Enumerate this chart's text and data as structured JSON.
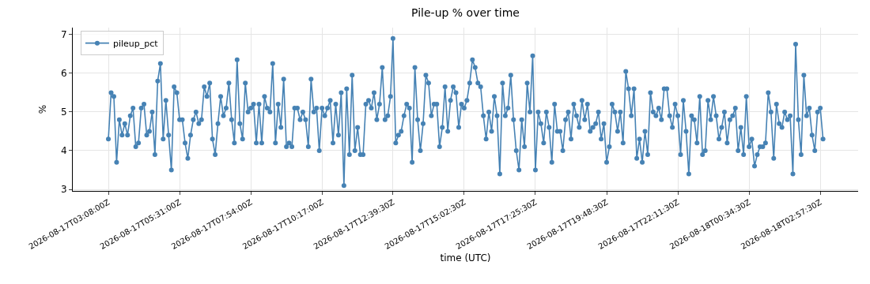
{
  "chart_data": {
    "type": "line",
    "title": "Pile-up % over time",
    "xlabel": "time (UTC)",
    "ylabel": "%",
    "x": [
      "2026-08-17T03:08:00",
      "2026-08-17T03:13:30",
      "2026-08-17T03:19:00",
      "2026-08-17T03:24:30",
      "2026-08-17T03:30:00",
      "2026-08-17T03:35:30",
      "2026-08-17T03:41:00",
      "2026-08-17T03:46:30",
      "2026-08-17T03:52:00",
      "2026-08-17T03:57:30",
      "2026-08-17T04:03:00",
      "2026-08-17T04:08:30",
      "2026-08-17T04:14:00",
      "2026-08-17T04:19:30",
      "2026-08-17T04:25:00",
      "2026-08-17T04:30:30",
      "2026-08-17T04:36:00",
      "2026-08-17T04:41:30",
      "2026-08-17T04:47:00",
      "2026-08-17T04:52:30",
      "2026-08-17T04:58:00",
      "2026-08-17T05:03:30",
      "2026-08-17T05:09:00",
      "2026-08-17T05:14:30",
      "2026-08-17T05:20:00",
      "2026-08-17T05:25:30",
      "2026-08-17T05:31:00",
      "2026-08-17T05:36:30",
      "2026-08-17T05:42:00",
      "2026-08-17T05:47:30",
      "2026-08-17T05:53:00",
      "2026-08-17T05:58:30",
      "2026-08-17T06:04:00",
      "2026-08-17T06:09:30",
      "2026-08-17T06:15:00",
      "2026-08-17T06:20:30",
      "2026-08-17T06:26:00",
      "2026-08-17T06:31:30",
      "2026-08-17T06:37:00",
      "2026-08-17T06:42:30",
      "2026-08-17T06:48:00",
      "2026-08-17T06:53:30",
      "2026-08-17T06:59:00",
      "2026-08-17T07:04:30",
      "2026-08-17T07:10:00",
      "2026-08-17T07:15:30",
      "2026-08-17T07:21:00",
      "2026-08-17T07:26:30",
      "2026-08-17T07:32:00",
      "2026-08-17T07:37:30",
      "2026-08-17T07:43:00",
      "2026-08-17T07:48:30",
      "2026-08-17T07:54:00",
      "2026-08-17T07:59:30",
      "2026-08-17T08:05:00",
      "2026-08-17T08:10:30",
      "2026-08-17T08:16:00",
      "2026-08-17T08:21:30",
      "2026-08-17T08:27:00",
      "2026-08-17T08:32:30",
      "2026-08-17T08:38:00",
      "2026-08-17T08:43:30",
      "2026-08-17T08:49:00",
      "2026-08-17T08:54:30",
      "2026-08-17T09:00:00",
      "2026-08-17T09:05:30",
      "2026-08-17T09:11:00",
      "2026-08-17T09:16:30",
      "2026-08-17T09:22:00",
      "2026-08-17T09:27:30",
      "2026-08-17T09:33:00",
      "2026-08-17T09:38:30",
      "2026-08-17T09:44:00",
      "2026-08-17T09:49:30",
      "2026-08-17T09:55:00",
      "2026-08-17T10:00:30",
      "2026-08-17T10:06:00",
      "2026-08-17T10:11:30",
      "2026-08-17T10:17:00",
      "2026-08-17T10:22:30",
      "2026-08-17T10:28:00",
      "2026-08-17T10:33:30",
      "2026-08-17T10:39:00",
      "2026-08-17T10:44:30",
      "2026-08-17T10:50:00",
      "2026-08-17T10:55:30",
      "2026-08-17T11:01:00",
      "2026-08-17T11:06:30",
      "2026-08-17T11:12:00",
      "2026-08-17T11:17:30",
      "2026-08-17T11:23:00",
      "2026-08-17T11:28:30",
      "2026-08-17T11:34:00",
      "2026-08-17T11:39:30",
      "2026-08-17T11:45:00",
      "2026-08-17T11:50:30",
      "2026-08-17T11:56:00",
      "2026-08-17T12:01:30",
      "2026-08-17T12:07:00",
      "2026-08-17T12:12:30",
      "2026-08-17T12:18:00",
      "2026-08-17T12:23:30",
      "2026-08-17T12:29:00",
      "2026-08-17T12:34:30",
      "2026-08-17T12:39:30",
      "2026-08-17T12:45:00",
      "2026-08-17T12:50:30",
      "2026-08-17T12:56:00",
      "2026-08-17T13:01:30",
      "2026-08-17T13:07:00",
      "2026-08-17T13:12:30",
      "2026-08-17T13:18:00",
      "2026-08-17T13:23:30",
      "2026-08-17T13:29:00",
      "2026-08-17T13:34:30",
      "2026-08-17T13:40:00",
      "2026-08-17T13:45:30",
      "2026-08-17T13:51:00",
      "2026-08-17T13:56:30",
      "2026-08-17T14:02:00",
      "2026-08-17T14:07:30",
      "2026-08-17T14:13:00",
      "2026-08-17T14:18:30",
      "2026-08-17T14:24:00",
      "2026-08-17T14:29:30",
      "2026-08-17T14:35:00",
      "2026-08-17T14:40:30",
      "2026-08-17T14:46:00",
      "2026-08-17T14:51:30",
      "2026-08-17T14:57:00",
      "2026-08-17T15:02:30",
      "2026-08-17T15:08:00",
      "2026-08-17T15:13:30",
      "2026-08-17T15:19:00",
      "2026-08-17T15:24:30",
      "2026-08-17T15:30:00",
      "2026-08-17T15:35:30",
      "2026-08-17T15:41:00",
      "2026-08-17T15:46:30",
      "2026-08-17T15:52:00",
      "2026-08-17T15:57:30",
      "2026-08-17T16:03:00",
      "2026-08-17T16:08:30",
      "2026-08-17T16:14:00",
      "2026-08-17T16:19:30",
      "2026-08-17T16:25:00",
      "2026-08-17T16:30:30",
      "2026-08-17T16:36:00",
      "2026-08-17T16:41:30",
      "2026-08-17T16:47:00",
      "2026-08-17T16:52:30",
      "2026-08-17T16:58:00",
      "2026-08-17T17:03:30",
      "2026-08-17T17:09:00",
      "2026-08-17T17:14:30",
      "2026-08-17T17:20:00",
      "2026-08-17T17:25:30",
      "2026-08-17T17:31:00",
      "2026-08-17T17:36:30",
      "2026-08-17T17:42:00",
      "2026-08-17T17:47:30",
      "2026-08-17T17:53:00",
      "2026-08-17T17:58:30",
      "2026-08-17T18:04:00",
      "2026-08-17T18:09:30",
      "2026-08-17T18:15:00",
      "2026-08-17T18:20:30",
      "2026-08-17T18:26:00",
      "2026-08-17T18:31:30",
      "2026-08-17T18:37:00",
      "2026-08-17T18:42:30",
      "2026-08-17T18:48:00",
      "2026-08-17T18:53:30",
      "2026-08-17T18:59:00",
      "2026-08-17T19:04:30",
      "2026-08-17T19:10:00",
      "2026-08-17T19:15:30",
      "2026-08-17T19:21:00",
      "2026-08-17T19:26:30",
      "2026-08-17T19:32:00",
      "2026-08-17T19:37:30",
      "2026-08-17T19:43:00",
      "2026-08-17T19:48:30",
      "2026-08-17T19:54:00",
      "2026-08-17T19:59:30",
      "2026-08-17T20:05:00",
      "2026-08-17T20:10:30",
      "2026-08-17T20:16:00",
      "2026-08-17T20:21:30",
      "2026-08-17T20:27:00",
      "2026-08-17T20:32:30",
      "2026-08-17T20:38:00",
      "2026-08-17T20:43:30",
      "2026-08-17T20:49:00",
      "2026-08-17T20:54:30",
      "2026-08-17T21:00:00",
      "2026-08-17T21:05:30",
      "2026-08-17T21:11:00",
      "2026-08-17T21:16:30",
      "2026-08-17T21:22:00",
      "2026-08-17T21:27:30",
      "2026-08-17T21:33:00",
      "2026-08-17T21:38:30",
      "2026-08-17T21:44:00",
      "2026-08-17T21:49:30",
      "2026-08-17T21:55:00",
      "2026-08-17T22:00:30",
      "2026-08-17T22:06:00",
      "2026-08-17T22:11:30",
      "2026-08-17T22:17:00",
      "2026-08-17T22:22:30",
      "2026-08-17T22:28:00",
      "2026-08-17T22:33:30",
      "2026-08-17T22:39:00",
      "2026-08-17T22:44:30",
      "2026-08-17T22:50:00",
      "2026-08-17T22:55:30",
      "2026-08-17T23:01:00",
      "2026-08-17T23:06:30",
      "2026-08-17T23:12:00",
      "2026-08-17T23:17:30",
      "2026-08-17T23:23:00",
      "2026-08-17T23:28:30",
      "2026-08-17T23:34:00",
      "2026-08-17T23:39:30",
      "2026-08-17T23:45:00",
      "2026-08-17T23:50:30",
      "2026-08-17T23:56:00",
      "2026-08-18T00:01:30",
      "2026-08-18T00:07:00",
      "2026-08-18T00:12:30",
      "2026-08-18T00:18:00",
      "2026-08-18T00:23:30",
      "2026-08-18T00:29:00",
      "2026-08-18T00:34:30",
      "2026-08-18T00:40:00",
      "2026-08-18T00:45:30",
      "2026-08-18T00:51:00",
      "2026-08-18T00:56:30",
      "2026-08-18T01:02:00",
      "2026-08-18T01:07:30",
      "2026-08-18T01:13:00",
      "2026-08-18T01:18:30",
      "2026-08-18T01:24:00",
      "2026-08-18T01:29:30",
      "2026-08-18T01:35:00",
      "2026-08-18T01:40:30",
      "2026-08-18T01:46:00",
      "2026-08-18T01:51:30",
      "2026-08-18T01:57:00",
      "2026-08-18T02:02:30",
      "2026-08-18T02:08:00",
      "2026-08-18T02:13:30",
      "2026-08-18T02:19:00",
      "2026-08-18T02:24:30",
      "2026-08-18T02:30:00",
      "2026-08-18T02:35:30",
      "2026-08-18T02:41:00",
      "2026-08-18T02:46:30",
      "2026-08-18T02:52:00",
      "2026-08-18T02:57:30",
      "2026-08-18T03:03:00"
    ],
    "series": [
      {
        "name": "pileup_pct",
        "color": "#4682b4",
        "values": [
          4.3,
          5.5,
          5.4,
          3.7,
          4.8,
          4.4,
          4.7,
          4.4,
          4.9,
          5.1,
          4.1,
          4.2,
          5.1,
          5.2,
          4.4,
          4.5,
          5.0,
          3.9,
          5.8,
          6.25,
          4.3,
          5.3,
          4.4,
          3.5,
          5.65,
          5.5,
          4.8,
          4.8,
          4.2,
          3.8,
          4.4,
          4.8,
          5.0,
          4.7,
          4.8,
          5.65,
          5.4,
          5.75,
          4.3,
          3.9,
          4.7,
          5.4,
          4.9,
          5.1,
          5.75,
          4.8,
          4.2,
          6.35,
          4.7,
          4.3,
          5.75,
          5.0,
          5.1,
          5.2,
          4.2,
          5.2,
          4.2,
          5.4,
          5.1,
          5.0,
          6.25,
          4.2,
          5.2,
          4.6,
          5.85,
          4.1,
          4.2,
          4.1,
          5.1,
          5.1,
          4.8,
          5.0,
          4.8,
          4.1,
          5.85,
          5.0,
          5.1,
          4.0,
          5.1,
          4.9,
          5.1,
          5.3,
          4.2,
          5.2,
          4.4,
          5.5,
          3.1,
          5.6,
          3.9,
          5.95,
          4.0,
          4.6,
          3.9,
          3.9,
          5.2,
          5.3,
          5.1,
          5.5,
          4.8,
          5.2,
          6.15,
          4.8,
          4.9,
          5.4,
          6.9,
          4.2,
          4.4,
          4.5,
          4.9,
          5.2,
          5.1,
          3.7,
          6.15,
          4.8,
          4.0,
          4.7,
          5.95,
          5.75,
          4.9,
          5.2,
          5.2,
          4.1,
          4.6,
          5.65,
          4.5,
          5.3,
          5.65,
          5.5,
          4.6,
          5.2,
          5.1,
          5.3,
          5.75,
          6.35,
          6.15,
          5.75,
          5.65,
          4.9,
          4.3,
          5.0,
          4.5,
          5.4,
          4.9,
          3.4,
          5.75,
          4.9,
          5.1,
          5.95,
          4.8,
          4.0,
          3.5,
          4.8,
          4.1,
          5.75,
          5.0,
          6.45,
          3.5,
          5.0,
          4.7,
          4.2,
          5.0,
          4.6,
          3.7,
          5.2,
          4.5,
          4.5,
          4.0,
          4.8,
          5.0,
          4.3,
          5.2,
          4.9,
          4.6,
          5.3,
          4.8,
          5.2,
          4.5,
          4.6,
          4.7,
          5.0,
          4.3,
          4.7,
          3.7,
          4.1,
          5.2,
          5.0,
          4.5,
          5.0,
          4.2,
          6.05,
          5.6,
          4.9,
          5.6,
          3.8,
          4.3,
          3.7,
          4.5,
          3.9,
          5.5,
          5.0,
          4.9,
          5.1,
          4.8,
          5.6,
          5.6,
          4.9,
          4.6,
          5.2,
          4.9,
          3.9,
          5.3,
          4.5,
          3.4,
          4.9,
          4.8,
          4.2,
          5.4,
          3.9,
          4.0,
          5.3,
          4.8,
          5.4,
          4.9,
          4.3,
          4.6,
          5.0,
          4.2,
          4.8,
          4.9,
          5.1,
          4.0,
          4.6,
          3.9,
          5.4,
          4.1,
          4.3,
          3.6,
          3.9,
          4.1,
          4.1,
          4.2,
          5.5,
          5.0,
          3.8,
          5.2,
          4.7,
          4.6,
          5.0,
          4.8,
          4.9,
          3.4,
          6.75,
          4.8,
          3.9,
          5.95,
          4.9,
          5.1,
          4.4,
          4.0,
          5.0,
          5.1,
          4.3
        ]
      }
    ],
    "xlim": [
      "2026-08-17T01:56:30",
      "2026-08-18T04:13:30"
    ],
    "xticks": [
      {
        "value": "2026-08-17T03:08:00",
        "label": "2026-08-17T03:08:00Z"
      },
      {
        "value": "2026-08-17T05:31:00",
        "label": "2026-08-17T05:31:00Z"
      },
      {
        "value": "2026-08-17T07:54:00",
        "label": "2026-08-17T07:54:00Z"
      },
      {
        "value": "2026-08-17T10:17:00",
        "label": "2026-08-17T10:17:00Z"
      },
      {
        "value": "2026-08-17T12:39:30",
        "label": "2026-08-17T12:39:30Z"
      },
      {
        "value": "2026-08-17T15:02:30",
        "label": "2026-08-17T15:02:30Z"
      },
      {
        "value": "2026-08-17T17:25:30",
        "label": "2026-08-17T17:25:30Z"
      },
      {
        "value": "2026-08-17T19:48:30",
        "label": "2026-08-17T19:48:30Z"
      },
      {
        "value": "2026-08-17T22:11:30",
        "label": "2026-08-17T22:11:30Z"
      },
      {
        "value": "2026-08-18T00:34:30",
        "label": "2026-08-18T00:34:30Z"
      },
      {
        "value": "2026-08-18T02:57:30",
        "label": "2026-08-18T02:57:30Z"
      }
    ],
    "ylim": [
      2.96,
      7.18
    ],
    "yticks": [
      3,
      4,
      5,
      6,
      7
    ],
    "grid": true,
    "legend": "top left",
    "marker": "circle",
    "line_style": "solid"
  }
}
